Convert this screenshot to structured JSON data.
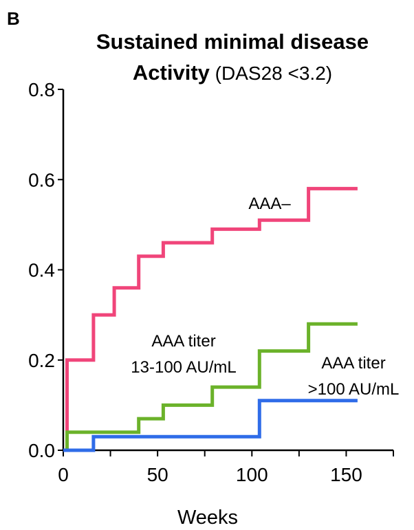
{
  "panel_label": "B",
  "chart_data": {
    "type": "line",
    "step": true,
    "title_line1": "Sustained minimal disease",
    "title_line2_bold": "Activity",
    "title_line2_rest": " (DAS28 <3.2)",
    "xlabel": "Weeks",
    "ylabel": "",
    "xlim": [
      0,
      175
    ],
    "ylim": [
      0,
      0.8
    ],
    "x_ticks": [
      0,
      50,
      100,
      150
    ],
    "x_minor_ticks": [
      25,
      75,
      125,
      175
    ],
    "y_ticks": [
      0.0,
      0.2,
      0.4,
      0.6,
      0.8
    ],
    "y_tick_labels": [
      "0.0",
      "0.2",
      "0.4",
      "0.6",
      "0.8"
    ],
    "grid": false,
    "legend": "none",
    "series": [
      {
        "name": "AAA–",
        "color": "#f0457a",
        "x": [
          0,
          2,
          2,
          6,
          6,
          16,
          16,
          27,
          27,
          40,
          40,
          53,
          53,
          79,
          79,
          104,
          104,
          130,
          130,
          156
        ],
        "y": [
          0,
          0,
          0.2,
          0.2,
          0.2,
          0.2,
          0.3,
          0.3,
          0.36,
          0.36,
          0.43,
          0.43,
          0.46,
          0.46,
          0.49,
          0.49,
          0.51,
          0.51,
          0.58,
          0.58
        ]
      },
      {
        "name": "AAA titer 13-100 AU/mL",
        "color": "#6bb22a",
        "x": [
          2,
          2,
          40,
          40,
          53,
          53,
          79,
          79,
          104,
          104,
          130,
          130,
          156
        ],
        "y": [
          0,
          0.04,
          0.04,
          0.07,
          0.07,
          0.1,
          0.1,
          0.14,
          0.14,
          0.22,
          0.22,
          0.28,
          0.28
        ]
      },
      {
        "name": "AAA titer >100 AU/mL",
        "color": "#2f6ce8",
        "x": [
          0,
          16,
          16,
          104,
          104,
          156
        ],
        "y": [
          0,
          0,
          0.03,
          0.03,
          0.11,
          0.11
        ]
      }
    ],
    "annotations": {
      "aaa_neg": "AAA–",
      "mid_line1": "AAA titer",
      "mid_line2": "13-100 AU/mL",
      "high_line1": "AAA titer",
      "high_line2": ">100 AU/mL"
    }
  }
}
